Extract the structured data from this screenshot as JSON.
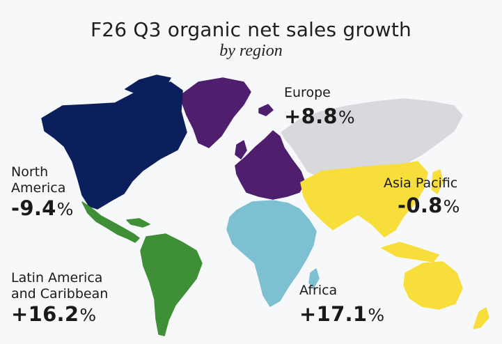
{
  "title": "F26 Q3 organic net sales growth",
  "subtitle": "by region",
  "regions": {
    "north_america": {
      "name_line1": "North",
      "name_line2": "America",
      "value": "-9.4",
      "unit": "%",
      "color": "#0b1f5c"
    },
    "europe": {
      "name": "Europe",
      "value": "+8.8",
      "unit": "%",
      "color": "#4f1f6e"
    },
    "asia_pacific": {
      "name": "Asia Pacific",
      "value": "-0.8",
      "unit": "%",
      "color": "#f7de3a"
    },
    "latin_america": {
      "name_line1": "Latin America",
      "name_line2": "and Caribbean",
      "value": "+16.2",
      "unit": "%",
      "color": "#3f8f36"
    },
    "africa": {
      "name": "Africa",
      "value": "+17.1",
      "unit": "%",
      "color": "#7cc0d1"
    },
    "rest_of_world": {
      "color": "#d9d9dd"
    }
  }
}
